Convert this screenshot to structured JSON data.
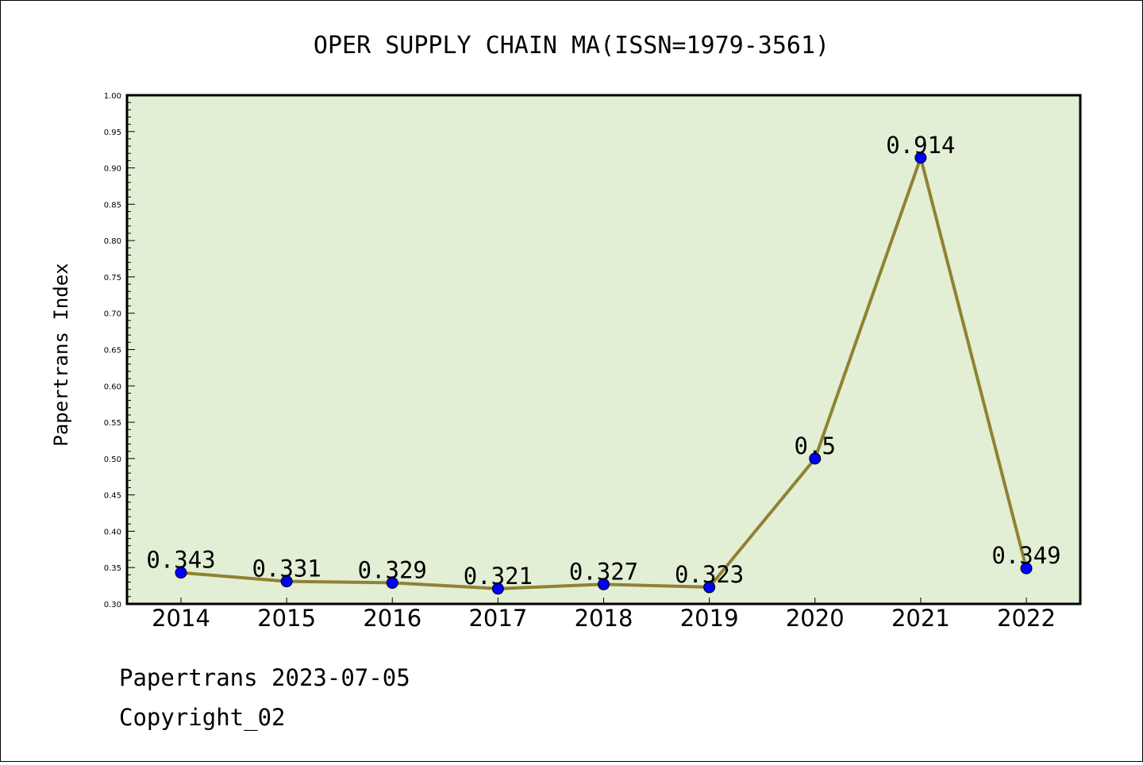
{
  "chart_data": {
    "type": "line",
    "title": "OPER SUPPLY CHAIN MA(ISSN=1979-3561)",
    "xlabel": "",
    "ylabel": "Papertrans Index",
    "categories": [
      "2014",
      "2015",
      "2016",
      "2017",
      "2018",
      "2019",
      "2020",
      "2021",
      "2022"
    ],
    "series": [
      {
        "values": [
          0.343,
          0.331,
          0.329,
          0.321,
          0.327,
          0.323,
          0.5,
          0.914,
          0.349
        ]
      }
    ],
    "data_labels": [
      "0.343",
      "0.331",
      "0.329",
      "0.321",
      "0.327",
      "0.323",
      "0.5",
      "0.914",
      "0.349"
    ],
    "ylim": [
      0.3,
      1.0
    ],
    "yticks": [
      "0.30",
      "0.35",
      "0.40",
      "0.45",
      "0.50",
      "0.55",
      "0.60",
      "0.65",
      "0.70",
      "0.75",
      "0.80",
      "0.85",
      "0.90",
      "0.95",
      "1.00"
    ],
    "grid": false,
    "legend": "none",
    "colors": {
      "plot_background": "#e2efd5",
      "line": "#8f8232",
      "marker": "#0000ff"
    }
  },
  "footer": {
    "source": "Papertrans 2023-07-05",
    "copyright": "Copyright_02"
  }
}
